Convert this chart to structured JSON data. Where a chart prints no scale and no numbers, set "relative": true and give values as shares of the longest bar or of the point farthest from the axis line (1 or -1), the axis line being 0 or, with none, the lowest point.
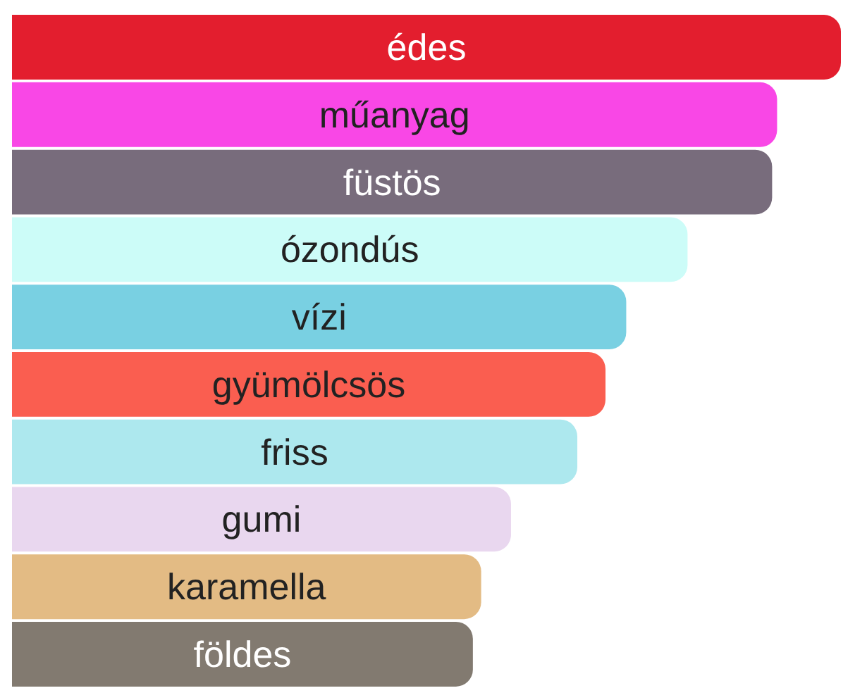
{
  "chart_data": {
    "type": "bar",
    "orientation": "horizontal",
    "relative": true,
    "categories": [
      "édes",
      "műanyag",
      "füstös",
      "ózondús",
      "vízi",
      "gyümölcsös",
      "friss",
      "gumi",
      "karamella",
      "földes"
    ],
    "values": [
      1,
      0.923,
      0.917,
      0.815,
      0.741,
      0.716,
      0.682,
      0.602,
      0.566,
      0.556
    ],
    "colors": [
      "#e31e2e",
      "#f947e6",
      "#786c7c",
      "#ccfcf8",
      "#79d0e2",
      "#fa5e50",
      "#ade8ee",
      "#e9d7ef",
      "#e3bb84",
      "#827a70"
    ]
  }
}
